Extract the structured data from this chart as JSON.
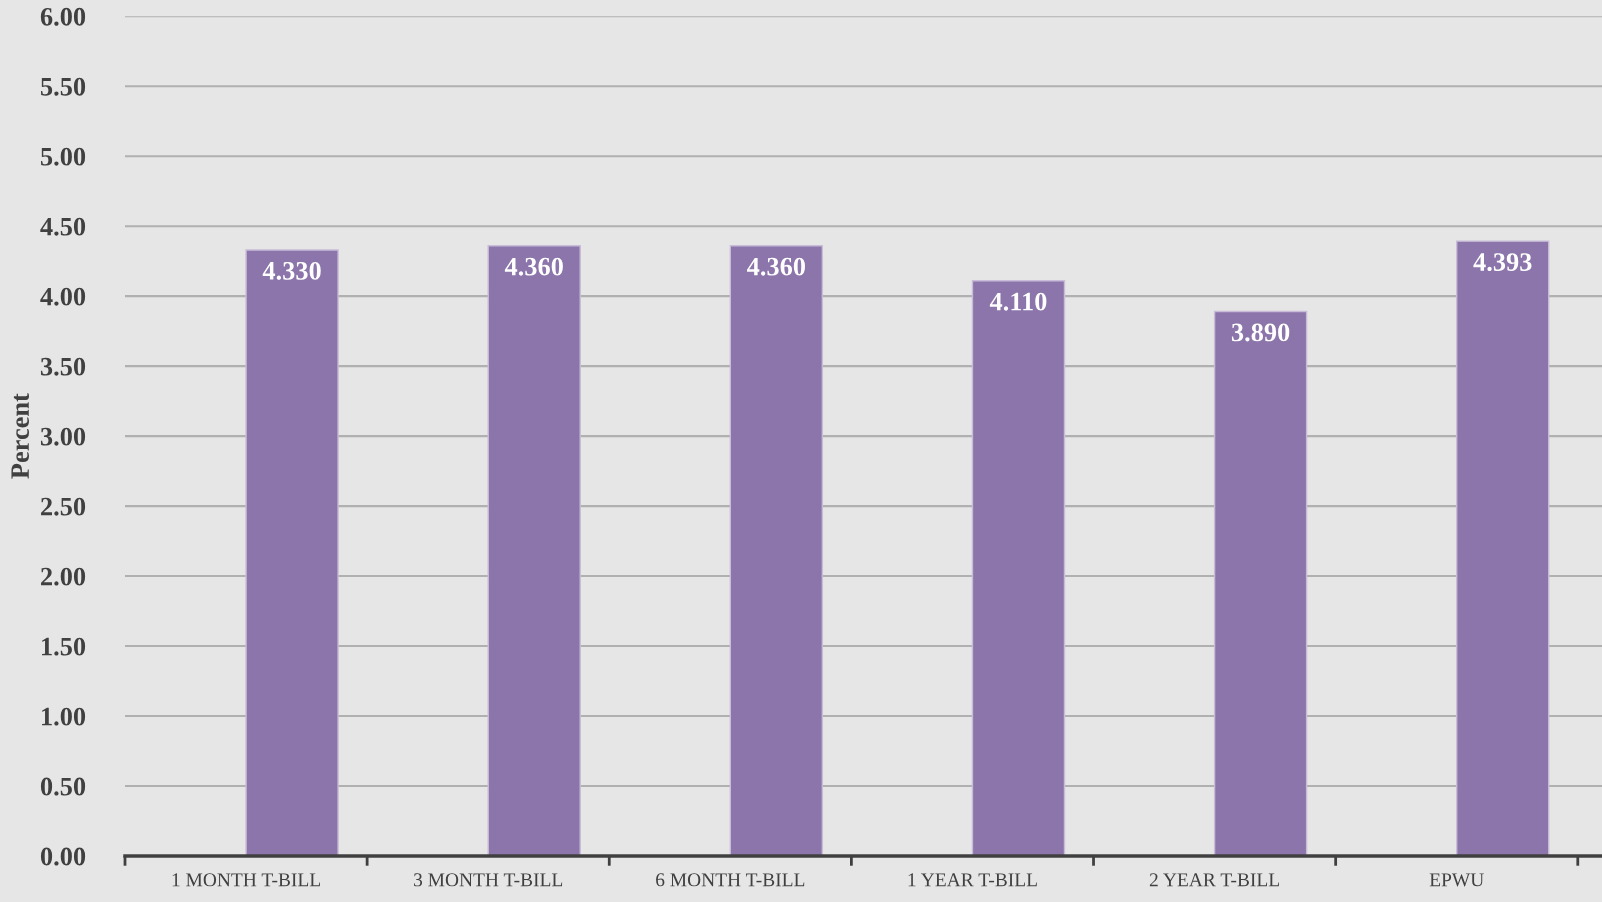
{
  "chart_data": {
    "type": "bar",
    "ylabel": "Percent",
    "categories": [
      "1 MONTH T-BILL",
      "3 MONTH T-BILL",
      "6 MONTH T-BILL",
      "1 YEAR T-BILL",
      "2 YEAR T-BILL",
      "EPWU"
    ],
    "values": [
      4.33,
      4.36,
      4.36,
      4.11,
      3.89,
      4.393
    ],
    "value_labels": [
      "4.330",
      "4.360",
      "4.360",
      "4.110",
      "3.890",
      "4.393"
    ],
    "color": "#8b75ab",
    "ylim": [
      0,
      6
    ],
    "yticks": [
      {
        "value": 0,
        "label": "0.00"
      },
      {
        "value": 0.5,
        "label": "0.50"
      },
      {
        "value": 1,
        "label": "1.00"
      },
      {
        "value": 1.5,
        "label": "1.50"
      },
      {
        "value": 2,
        "label": "2.00"
      },
      {
        "value": 2.5,
        "label": "2.50"
      },
      {
        "value": 3,
        "label": "3.00"
      },
      {
        "value": 3.5,
        "label": "3.50"
      },
      {
        "value": 4,
        "label": "4.00"
      },
      {
        "value": 4.5,
        "label": "4.50"
      },
      {
        "value": 5,
        "label": "5.00"
      },
      {
        "value": 5.5,
        "label": "5.50"
      },
      {
        "value": 6,
        "label": "6.00"
      }
    ],
    "grid": "y"
  }
}
